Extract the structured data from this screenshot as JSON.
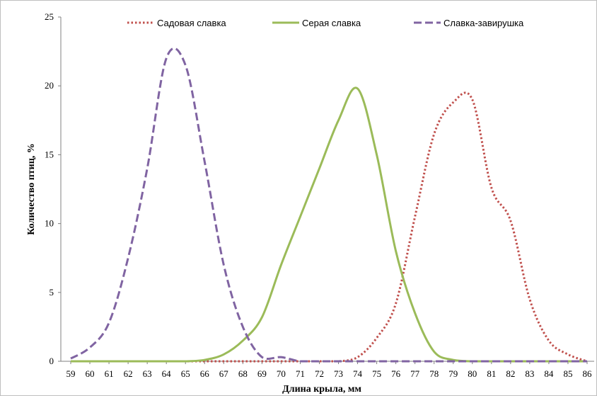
{
  "chart_data": {
    "type": "line",
    "title": "",
    "xlabel": "Длина крыла, мм",
    "ylabel": "Количество птиц, %",
    "x": [
      59,
      60,
      61,
      62,
      63,
      64,
      65,
      66,
      67,
      68,
      69,
      70,
      71,
      72,
      73,
      74,
      75,
      76,
      77,
      78,
      79,
      80,
      81,
      82,
      83,
      84,
      85,
      86
    ],
    "xlim": [
      59,
      86
    ],
    "ylim": [
      0,
      25
    ],
    "yticks": [
      0,
      5,
      10,
      15,
      20,
      25
    ],
    "grid": false,
    "legend": "top",
    "series": [
      {
        "name": "Садовая славка",
        "color": "#c0504d",
        "dash": "dotted",
        "values": [
          0,
          0,
          0,
          0,
          0,
          0,
          0,
          0,
          0,
          0,
          0,
          0,
          0,
          0,
          0,
          0.3,
          1.7,
          4.2,
          10.5,
          16.5,
          18.8,
          19.0,
          12.6,
          10.2,
          4.5,
          1.5,
          0.5,
          0
        ]
      },
      {
        "name": "Серая славка",
        "color": "#9bbb59",
        "dash": "solid",
        "values": [
          0,
          0,
          0,
          0,
          0,
          0,
          0,
          0.1,
          0.5,
          1.5,
          3.2,
          7.0,
          10.5,
          14.0,
          17.5,
          19.8,
          15.0,
          8.0,
          3.5,
          0.7,
          0.1,
          0,
          0,
          0,
          0,
          0,
          0,
          0
        ]
      },
      {
        "name": "Славка-завирушка",
        "color": "#8064a2",
        "dash": "dashed",
        "values": [
          0.2,
          1.0,
          2.8,
          7.5,
          14.0,
          22.0,
          21.5,
          14.5,
          7.0,
          2.5,
          0.3,
          0.3,
          0,
          0,
          0,
          0,
          0,
          0,
          0,
          0,
          0,
          0,
          0,
          0,
          0,
          0,
          0,
          0
        ]
      }
    ]
  }
}
